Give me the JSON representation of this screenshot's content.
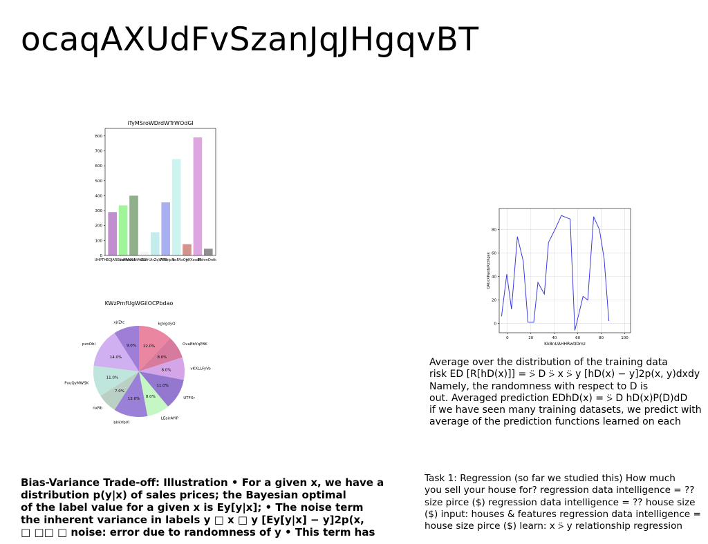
{
  "page": {
    "title": "ocaqAXUdFvSzanJqJHgqvBT"
  },
  "charts": [
    {
      "type": "bar",
      "title": "iTyMSroWDrdWTrWOdGl",
      "categories": [
        "UHPTHEQJAREdnrWKX",
        "bsRhiakb",
        "NtMOGI",
        "cSvfrUtrZqVYTB",
        "WhleipN",
        "bsRVsOjt",
        "yIfXzsdM",
        "ElshmDntk",
        "aKemHpr",
        "jXRf"
      ],
      "x_tick_labels": [
        "UHPTHEQJAREdnrWKX",
        "bsRhiakb",
        "NtMOGI",
        "cSvfrUtrZqVYTB",
        "WhleipN",
        "bsRVsOjt",
        "yIfXzsdM",
        "ElshmDntk"
      ],
      "values": [
        290,
        335,
        400,
        25,
        155,
        355,
        645,
        75,
        790,
        45
      ],
      "colors": [
        "#bf8fcf",
        "#a0f59a",
        "#8fb08a",
        "#f4f4f4",
        "#c4ecea",
        "#a8b0f2",
        "#cdf4ef",
        "#d3938e",
        "#dea6e0",
        "#8f8f8f"
      ],
      "ylim": [
        0,
        850
      ],
      "yticks": [
        0,
        100,
        200,
        300,
        400,
        500,
        600,
        700,
        800
      ]
    },
    {
      "type": "pie",
      "title": "KWzPmfUgWGiIOCPbdao",
      "slices": [
        {
          "label": "kgVgdyQ",
          "value": 12.0,
          "pct": "12.0%",
          "color": "#ea869f"
        },
        {
          "label": "OvaEbVqPBK",
          "value": 8.0,
          "pct": "8.0%",
          "color": "#d67a9e"
        },
        {
          "label": "vKXLLFyVo",
          "value": 8.0,
          "pct": "8.0%",
          "color": "#d4a6e8"
        },
        {
          "label": "UTFXr",
          "value": 11.0,
          "pct": "11.0%",
          "color": "#9478d0"
        },
        {
          "label": "LEairAYIP",
          "value": 8.0,
          "pct": "8.0%",
          "color": "#c4f7c4"
        },
        {
          "label": "bhkVbVl",
          "value": 12.0,
          "pct": "12.0%",
          "color": "#9a80d6"
        },
        {
          "label": "nxRb",
          "value": 7.0,
          "pct": "7.0%",
          "color": "#bad0c4"
        },
        {
          "label": "PxuQyMWSK",
          "value": 11.0,
          "pct": "11.0%",
          "color": "#bfe5dd"
        },
        {
          "label": "pzoObl",
          "value": 14.0,
          "pct": "14.0%",
          "color": "#d0b0f0"
        },
        {
          "label": "xjrZtc",
          "value": 9.0,
          "pct": "9.0%",
          "color": "#9e7ed6"
        }
      ]
    },
    {
      "type": "line",
      "xlabel": "KkBnUAHHRwtIDmz",
      "ylabel": "QAUcXPaxdyRzzKgek",
      "xlim": [
        -7,
        105
      ],
      "ylim": [
        -8,
        98
      ],
      "xticks": [
        0,
        20,
        40,
        60,
        80,
        100
      ],
      "yticks": [
        0,
        20,
        40,
        60,
        80
      ],
      "color": "#3a3adf",
      "x": [
        -5,
        -0.5,
        3.5,
        8.5,
        13.5,
        17.5,
        22.5,
        26,
        31.5,
        35,
        41,
        46,
        53.5,
        57.5,
        64.5,
        68.5,
        73.5,
        78.5,
        82.5,
        86.5,
        96.5
      ],
      "y": [
        6,
        42,
        12,
        74,
        53,
        1,
        1,
        35,
        25,
        69,
        81,
        92,
        89,
        -6,
        23,
        20,
        91,
        80,
        55,
        2,
        null
      ]
    }
  ],
  "right_text": {
    "lines": [
      "Average over the distribution of the training data",
      "risk ED [R[hD(x)]] = ⍩ D ⍩ x ⍩ y [hD(x) − y]2p(x, y)dxdy",
      "Namely, the randomness with respect to D is",
      "out. Averaged prediction EDhD(x) = ⍩ D hD(x)P(D)dD",
      "if we have seen many training datasets, we predict with",
      "average of the prediction functions learned on each"
    ]
  },
  "task_text": {
    "lines": [
      "Task 1: Regression (so far we studied this) How much",
      "you sell your house for? regression data intelligence = ??",
      "size pirce ($) regression data intelligence = ?? house size",
      "($) input: houses & features regression data intelligence =",
      "house size pirce ($) learn: x ⍩ y relationship regression"
    ]
  },
  "bold_text": {
    "lines": [
      "Bias-Variance Trade-off: Illustration • For a given x, we have a",
      "distribution p(y|x) of sales prices; the Bayesian optimal",
      "of the label value for a given x is Ey[y|x]; • The noise term",
      "the inherent variance in labels y □ x □ y [Ey[y|x] − y]2p(x,",
      "□ □□ □ noise: error due to randomness of y • This term has"
    ]
  }
}
